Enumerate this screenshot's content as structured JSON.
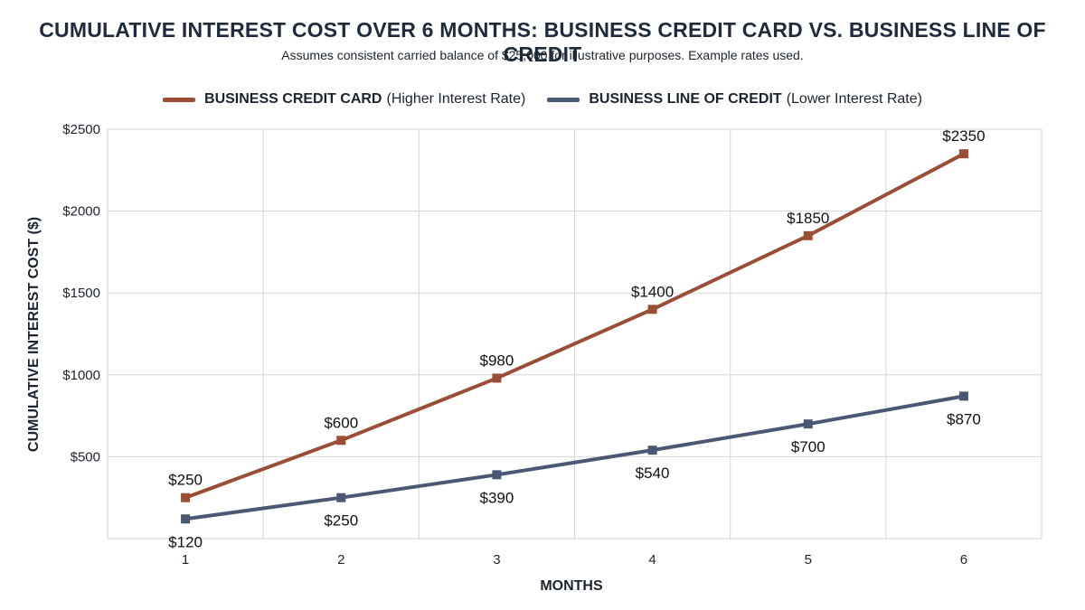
{
  "chart_data": {
    "type": "line",
    "title": "CUMULATIVE INTEREST COST OVER 6 MONTHS: BUSINESS CREDIT CARD VS. BUSINESS LINE OF CREDIT",
    "subtitle": "Assumes consistent carried balance of $25,000 for illustrative purposes. Example rates used.",
    "xlabel": "MONTHS",
    "ylabel": "CUMULATIVE INTEREST COST ($)",
    "x": [
      1,
      2,
      3,
      4,
      5,
      6
    ],
    "x_tick_labels": [
      "1",
      "2",
      "3",
      "4",
      "5",
      "6"
    ],
    "ylim": [
      0,
      2500
    ],
    "y_ticks": [
      500,
      1000,
      1500,
      2000,
      2500
    ],
    "y_tick_labels": [
      "$500",
      "$1000",
      "$1500",
      "$2000",
      "$2500"
    ],
    "grid": true,
    "legend_position": "top-center",
    "series": [
      {
        "name": "BUSINESS CREDIT CARD",
        "note": "(Higher Interest Rate)",
        "color": "#9a4e36",
        "values": [
          250,
          600,
          980,
          1400,
          1850,
          2350
        ],
        "value_labels": [
          "$250",
          "$600",
          "$980",
          "$1400",
          "$1850",
          "$2350"
        ]
      },
      {
        "name": "BUSINESS LINE OF CREDIT",
        "note": "(Lower Interest Rate)",
        "color": "#4b5873",
        "values": [
          120,
          250,
          390,
          540,
          700,
          870
        ],
        "value_labels": [
          "$120",
          "$250",
          "$390",
          "$540",
          "$700",
          "$870"
        ]
      }
    ]
  }
}
